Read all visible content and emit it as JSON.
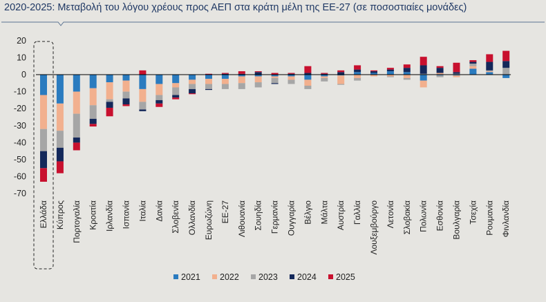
{
  "header": {
    "title": "2020-2025: Μεταβολή του λόγου χρέους προς ΑΕΠ στα κράτη μέλη της ΕΕ-27 (σε ποσοστιαίες μονάδες)"
  },
  "chart_data": {
    "type": "bar",
    "stacked": true,
    "title": "",
    "xlabel": "",
    "ylabel": "",
    "ylim": [
      -70,
      20
    ],
    "yticks": [
      20,
      10,
      0,
      -10,
      -20,
      -30,
      -40,
      -50,
      -60,
      -70
    ],
    "grid": false,
    "legend_position": "bottom",
    "highlighted_category": "Ελλάδα",
    "categories": [
      "Ελλάδα",
      "Κύπρος",
      "Πορτογαλία",
      "Κροατία",
      "Ιρλανδία",
      "Ισπανία",
      "Ιταλία",
      "Δανία",
      "Σλοβενία",
      "Ολλανδία",
      "Ευρωζώνη",
      "ΕΕ-27",
      "Λιθουανία",
      "Σουηδία",
      "Γερμανία",
      "Ουγγαρία",
      "Βέλγιο",
      "Μάλτα",
      "Αυστρία",
      "Γαλλία",
      "Λουξεμβούργο",
      "Λετονία",
      "Σλοβακία",
      "Πολωνία",
      "Εσθονία",
      "Βουλγαρία",
      "Τσεχία",
      "Ρουμανία",
      "Φινλανδία"
    ],
    "series": [
      {
        "name": "2021",
        "color": "#2a7bbf",
        "values": [
          -12,
          -17,
          -10,
          -8,
          -4.5,
          -3.5,
          -8.5,
          -5.5,
          -5,
          -3,
          -2.5,
          -2.5,
          -1,
          -1,
          -1,
          -1,
          -3,
          -1,
          -0.5,
          1.5,
          1,
          2,
          1.5,
          -3.5,
          -0.5,
          -0.5,
          3.5,
          1.5,
          -2
        ]
      },
      {
        "name": "2022",
        "color": "#f2b08e",
        "values": [
          -20,
          -16,
          -13,
          -10,
          -10,
          -6.5,
          -7.5,
          -6.5,
          -2.5,
          -2.5,
          -3,
          -3,
          -4,
          -3.5,
          -1,
          -2,
          -3.5,
          -1,
          -5,
          -2,
          -1,
          -1,
          -2,
          -4,
          1,
          -1,
          1.5,
          0.5,
          0
        ]
      },
      {
        "name": "2023",
        "color": "#a6a6a6",
        "values": [
          -13,
          -10,
          -14,
          -8,
          -1.5,
          -4,
          -4.5,
          -3,
          -4.5,
          -3,
          -3,
          -3,
          -3.5,
          -3,
          -3,
          -2.5,
          -2,
          -2,
          -0.5,
          -1.5,
          0,
          -0.5,
          -1,
          0.5,
          -1,
          0.5,
          1.5,
          0.5,
          4
        ]
      },
      {
        "name": "2024",
        "color": "#14285a",
        "values": [
          -10,
          -8,
          -3,
          -3,
          -3.5,
          -3.5,
          -1,
          -2,
          -1.5,
          -2.5,
          -0.5,
          0.5,
          0.5,
          1.5,
          -0.5,
          0.5,
          1,
          0.5,
          1.5,
          1.5,
          1,
          1,
          2.5,
          5,
          3,
          1,
          1,
          5,
          4
        ]
      },
      {
        "name": "2025",
        "color": "#c8102e",
        "values": [
          -8,
          -7,
          -4.5,
          -1.5,
          -5,
          -1,
          2.5,
          -2,
          -1,
          -0.5,
          0.5,
          0.5,
          1.5,
          0.5,
          1,
          0.5,
          4,
          0.5,
          1,
          2.5,
          0.5,
          1,
          2,
          5,
          1,
          5.5,
          1,
          4.5,
          6
        ]
      }
    ]
  }
}
